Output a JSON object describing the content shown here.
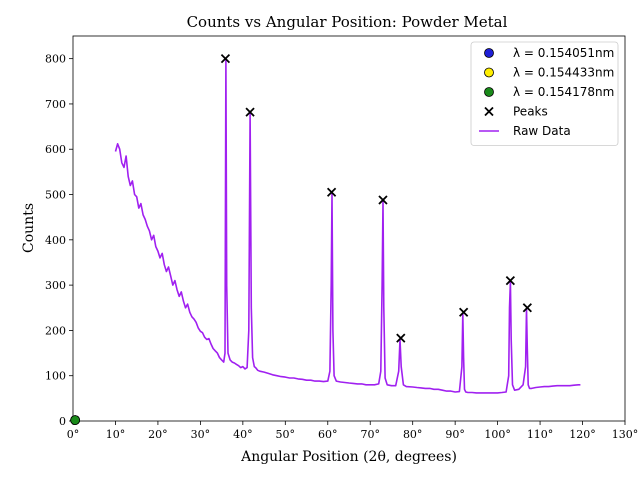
{
  "chart_data": {
    "type": "line",
    "title": "Counts vs Angular Position: Powder Metal",
    "xlabel": "Angular Position (2θ, degrees)",
    "ylabel": "Counts",
    "xlim": [
      0,
      130
    ],
    "ylim": [
      0,
      850
    ],
    "x_ticks": [
      0,
      10,
      20,
      30,
      40,
      50,
      60,
      70,
      80,
      90,
      100,
      110,
      120,
      130
    ],
    "x_tick_labels": [
      "0°",
      "10°",
      "20°",
      "30°",
      "40°",
      "50°",
      "60°",
      "70°",
      "80°",
      "90°",
      "100°",
      "110°",
      "120°",
      "130°"
    ],
    "y_ticks": [
      0,
      100,
      200,
      300,
      400,
      500,
      600,
      700,
      800
    ],
    "y_tick_labels": [
      "0",
      "100",
      "200",
      "300",
      "400",
      "500",
      "600",
      "700",
      "800"
    ],
    "grid": false,
    "legend_position": "top-right",
    "legend": [
      {
        "label": "λ = 0.154051nm",
        "marker": "circle",
        "color": "#1f1fd6"
      },
      {
        "label": "λ = 0.154433nm",
        "marker": "circle",
        "color": "#ffee00"
      },
      {
        "label": "λ = 0.154178nm",
        "marker": "circle",
        "color": "#1a8a1a"
      },
      {
        "label": "Peaks",
        "marker": "x",
        "color": "#000000"
      },
      {
        "label": "Raw Data",
        "marker": "line",
        "color": "#a020f0"
      }
    ],
    "series": [
      {
        "name": "Raw Data",
        "color": "#a020f0",
        "x": [
          10.0,
          10.5,
          11.0,
          11.5,
          12.0,
          12.5,
          13.0,
          13.5,
          14.0,
          14.5,
          15.0,
          15.5,
          16.0,
          16.5,
          17.0,
          17.5,
          18.0,
          18.5,
          19.0,
          19.5,
          20.0,
          20.5,
          21.0,
          21.5,
          22.0,
          22.5,
          23.0,
          23.5,
          24.0,
          24.5,
          25.0,
          25.5,
          26.0,
          26.5,
          27.0,
          27.5,
          28.0,
          28.5,
          29.0,
          29.5,
          30.0,
          30.5,
          31.0,
          31.5,
          32.0,
          32.5,
          33.0,
          33.5,
          34.0,
          34.5,
          35.0,
          35.5,
          35.8,
          36.0,
          36.2,
          36.5,
          37.0,
          37.5,
          38.0,
          38.5,
          39.0,
          39.5,
          40.0,
          40.5,
          41.0,
          41.4,
          41.7,
          42.0,
          42.3,
          42.7,
          43.0,
          43.5,
          44.0,
          45.0,
          46.0,
          47.0,
          48.0,
          49.0,
          50.0,
          51.0,
          52.0,
          53.0,
          54.0,
          55.0,
          56.0,
          57.0,
          58.0,
          59.0,
          60.0,
          60.5,
          60.8,
          61.0,
          61.2,
          61.5,
          62.0,
          63.0,
          64.0,
          65.0,
          66.0,
          67.0,
          68.0,
          69.0,
          70.0,
          71.0,
          72.0,
          72.5,
          72.8,
          73.0,
          73.2,
          73.5,
          74.0,
          75.0,
          76.0,
          76.7,
          77.0,
          77.3,
          77.8,
          78.5,
          80.0,
          81.0,
          82.0,
          83.0,
          84.0,
          85.0,
          86.0,
          87.0,
          88.0,
          89.0,
          90.0,
          91.0,
          91.6,
          91.8,
          92.0,
          92.2,
          92.5,
          93.0,
          94.0,
          95.0,
          96.0,
          97.0,
          98.0,
          99.0,
          100.0,
          101.0,
          102.0,
          102.6,
          102.8,
          103.0,
          103.2,
          103.5,
          104.0,
          105.0,
          106.0,
          106.6,
          106.8,
          107.0,
          107.2,
          107.5,
          108.0,
          109.0,
          110.0,
          111.0,
          112.0,
          113.0,
          114.0,
          115.0,
          116.0,
          117.0,
          118.0,
          119.0,
          119.5
        ],
        "y": [
          595,
          612,
          600,
          570,
          560,
          585,
          540,
          520,
          530,
          500,
          495,
          470,
          480,
          455,
          445,
          430,
          420,
          400,
          410,
          385,
          375,
          360,
          370,
          345,
          330,
          340,
          320,
          300,
          310,
          290,
          275,
          285,
          265,
          250,
          258,
          240,
          230,
          225,
          218,
          205,
          198,
          195,
          185,
          180,
          182,
          170,
          160,
          155,
          150,
          140,
          135,
          130,
          150,
          800,
          300,
          150,
          135,
          130,
          128,
          125,
          122,
          118,
          120,
          115,
          118,
          200,
          680,
          250,
          140,
          120,
          118,
          112,
          110,
          108,
          105,
          102,
          100,
          98,
          97,
          95,
          95,
          93,
          92,
          90,
          90,
          88,
          88,
          87,
          88,
          110,
          300,
          503,
          200,
          100,
          88,
          86,
          85,
          84,
          83,
          82,
          82,
          80,
          80,
          80,
          82,
          110,
          300,
          485,
          250,
          95,
          80,
          78,
          78,
          110,
          180,
          120,
          80,
          76,
          75,
          74,
          73,
          72,
          72,
          70,
          70,
          68,
          66,
          66,
          64,
          65,
          120,
          238,
          140,
          70,
          64,
          63,
          63,
          62,
          62,
          62,
          62,
          62,
          62,
          63,
          64,
          100,
          250,
          308,
          180,
          80,
          68,
          70,
          80,
          120,
          248,
          160,
          80,
          72,
          72,
          74,
          75,
          76,
          76,
          77,
          78,
          78,
          78,
          78,
          79,
          80,
          80
        ]
      }
    ],
    "peaks": {
      "x": [
        35.9,
        41.7,
        60.9,
        73.0,
        77.2,
        92.0,
        103.0,
        107.0
      ],
      "y": [
        800,
        682,
        505,
        488,
        183,
        240,
        310,
        250
      ]
    },
    "wavelength_points": [
      {
        "x": 0.5,
        "y": 2,
        "color": "#1f1fd6"
      },
      {
        "x": 0.5,
        "y": 2,
        "color": "#ffee00"
      },
      {
        "x": 0.5,
        "y": 2,
        "color": "#1a8a1a"
      }
    ]
  }
}
